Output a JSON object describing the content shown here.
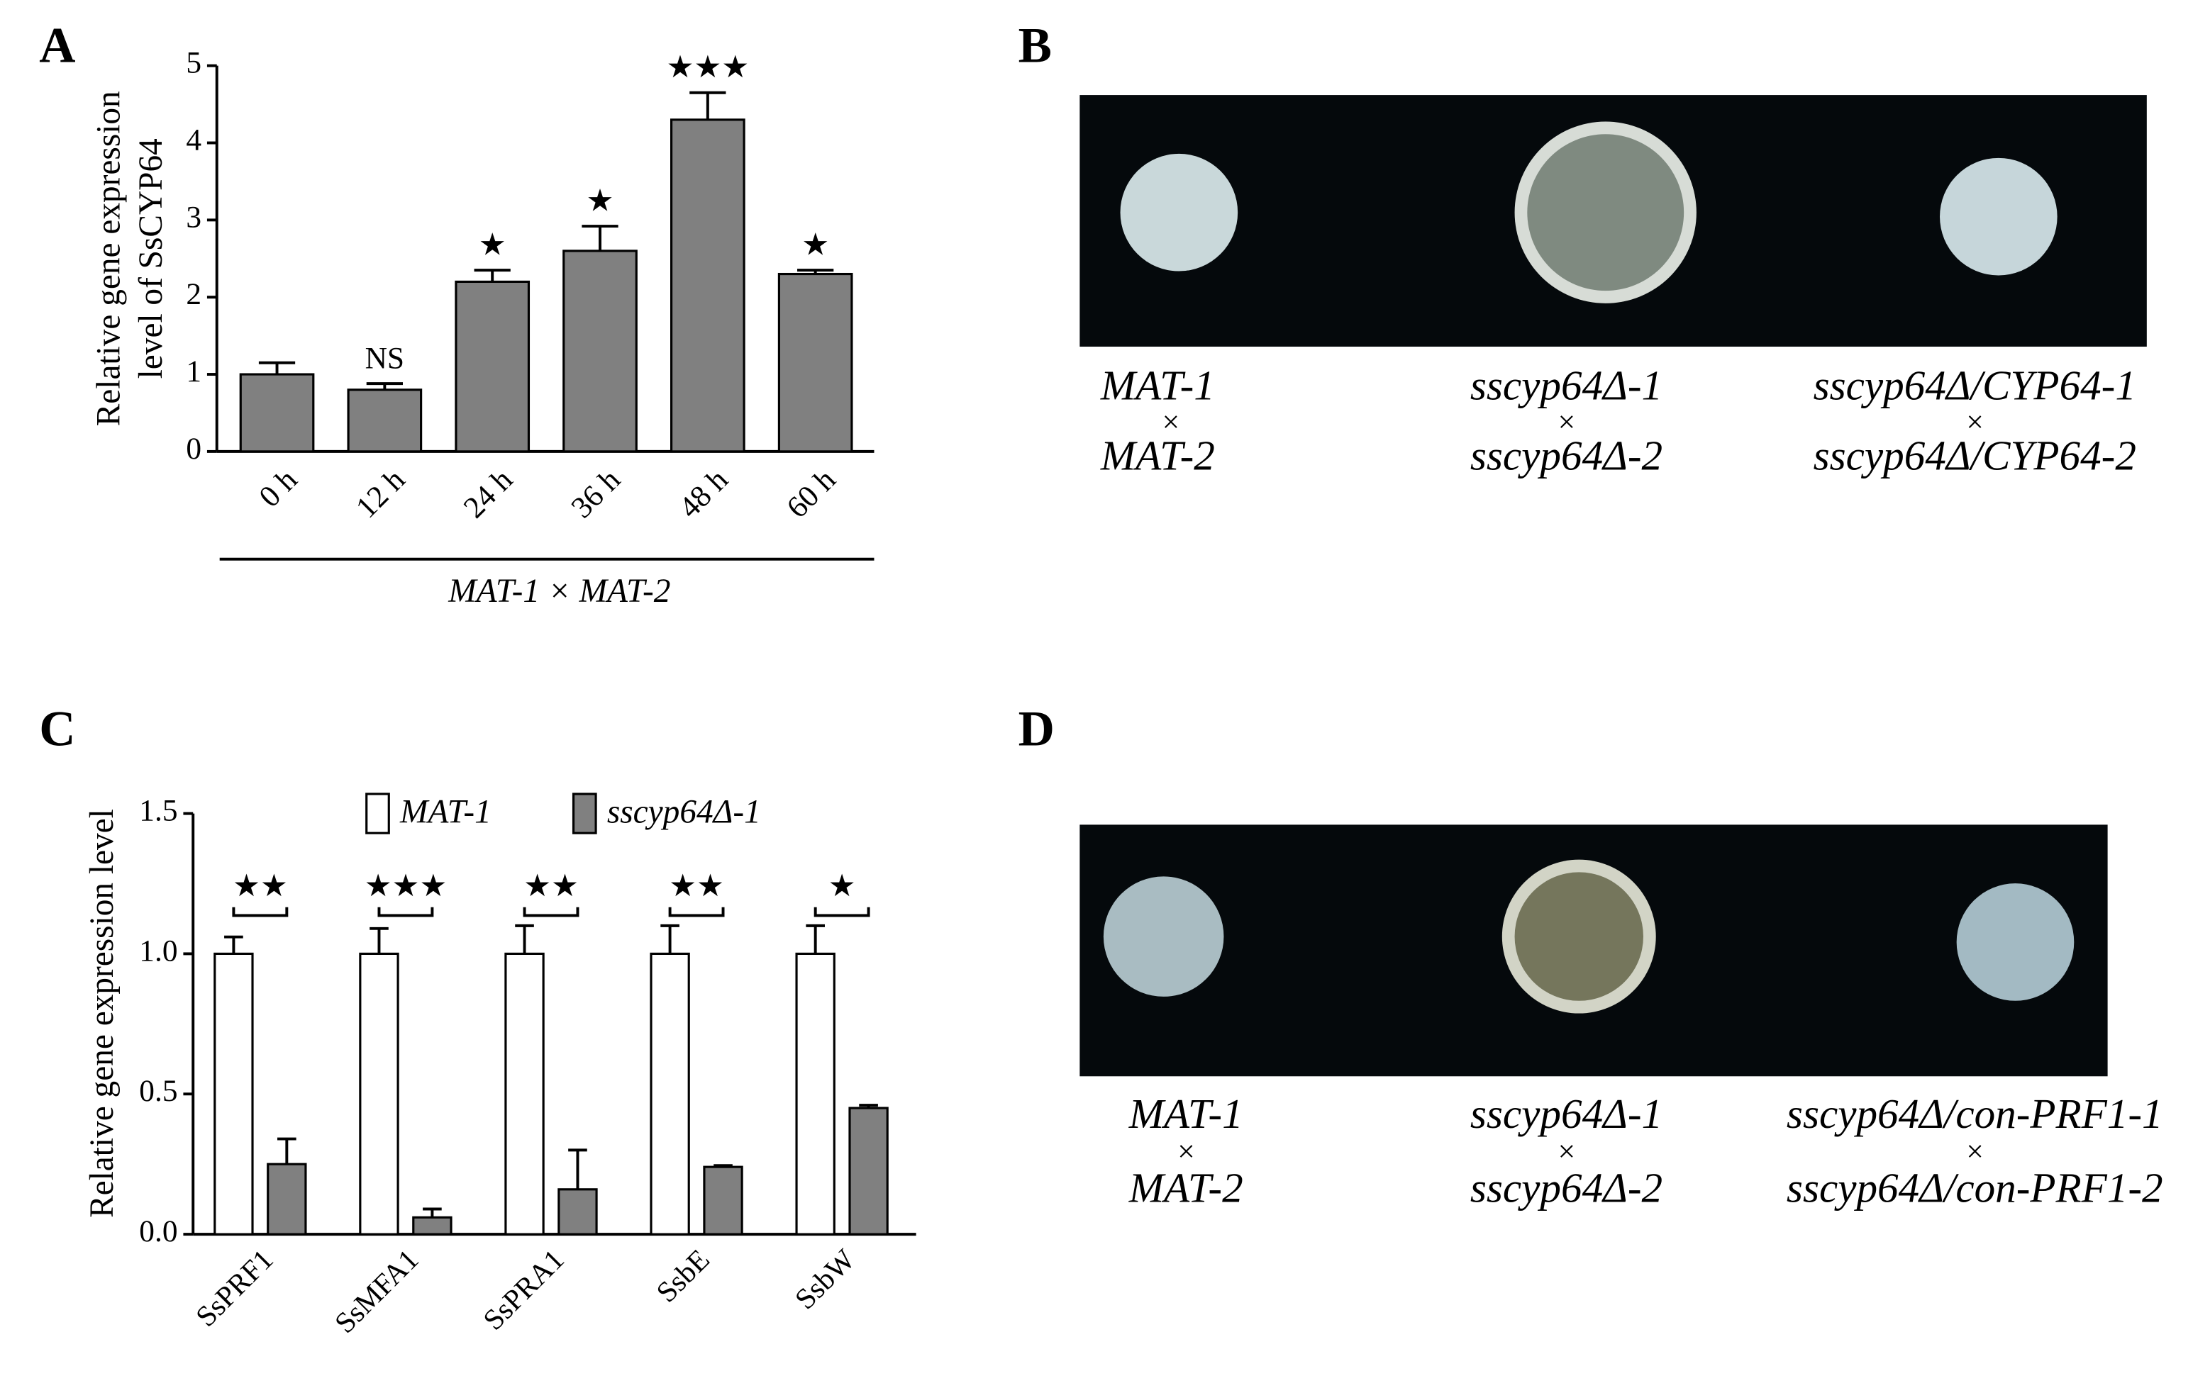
{
  "chart_data": [
    {
      "type": "bar",
      "panel": "A",
      "categories": [
        "0 h",
        "12 h",
        "24 h",
        "36 h",
        "48 h",
        "60 h"
      ],
      "values": [
        1.0,
        0.8,
        2.2,
        2.6,
        4.3,
        2.3
      ],
      "errors": [
        0.15,
        0.08,
        0.15,
        0.32,
        0.35,
        0.05
      ],
      "significance": [
        null,
        "NS",
        "★",
        "★",
        "★★★",
        "★"
      ],
      "color": "#808080",
      "ylim": [
        0,
        5
      ],
      "yticks": [
        0,
        1,
        2,
        3,
        4,
        5
      ],
      "y_label": [
        "Relative gene expression",
        "level of SsCYP64"
      ],
      "group_label": "MAT-1 × MAT-2"
    },
    {
      "type": "grouped_bar",
      "panel": "C",
      "categories": [
        "SsPRF1",
        "SsMFA1",
        "SsPRA1",
        "SsbE",
        "SsbW"
      ],
      "series": [
        {
          "name": "MAT-1",
          "color": "#ffffff",
          "values": [
            1.0,
            1.0,
            1.0,
            1.0,
            1.0
          ],
          "errors": [
            0.06,
            0.09,
            0.1,
            0.1,
            0.1
          ]
        },
        {
          "name": "sscyp64Δ-1",
          "color": "#808080",
          "values": [
            0.25,
            0.06,
            0.16,
            0.24,
            0.45
          ],
          "errors": [
            0.09,
            0.03,
            0.14,
            0.005,
            0.01
          ]
        }
      ],
      "significance": [
        "★★",
        "★★★",
        "★★",
        "★★",
        "★"
      ],
      "ylim": [
        0,
        1.5
      ],
      "yticks": [
        {
          "value": 0,
          "label": "0.0"
        },
        {
          "value": 0.5,
          "label": "0.5"
        },
        {
          "value": 1,
          "label": "1.0"
        },
        {
          "value": 1.5,
          "label": "1.5"
        }
      ],
      "y_label": [
        "Relative gene expression level"
      ]
    }
  ],
  "photo_panels": [
    {
      "panel": "B",
      "labels": [
        [
          "MAT-1",
          "×",
          "MAT-2"
        ],
        [
          "sscyp64Δ-1",
          "×",
          "sscyp64Δ-2"
        ],
        [
          "sscyp64Δ/CYP64-1",
          "×",
          "sscyp64Δ/CYP64-2"
        ]
      ]
    },
    {
      "panel": "D",
      "labels": [
        [
          "MAT-1",
          "×",
          "MAT-2"
        ],
        [
          "sscyp64Δ-1",
          "×",
          "sscyp64Δ-2"
        ],
        [
          "sscyp64Δ/con-PRF1-1",
          "×",
          "sscyp64Δ/con-PRF1-2"
        ]
      ]
    }
  ]
}
